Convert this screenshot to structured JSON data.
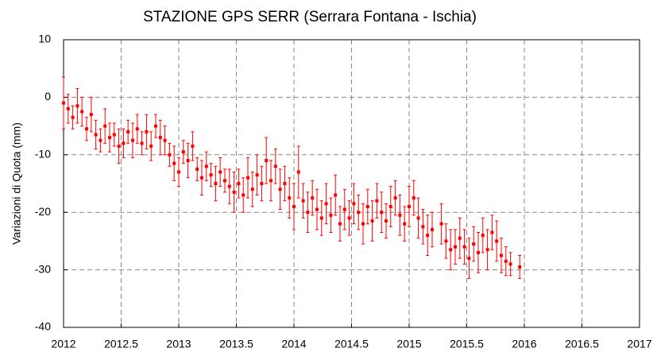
{
  "chart_data": {
    "type": "scatter",
    "title": "STAZIONE GPS SERR (Serrara Fontana - Ischia)",
    "y_label": "Variazioni di Quota (mm)",
    "color": "#ff0000",
    "grid": true,
    "xlim": [
      2012,
      2017
    ],
    "xticks": [
      2012,
      2012.5,
      2013,
      2013.5,
      2014,
      2014.5,
      2015,
      2015.5,
      2016,
      2016.5,
      2017
    ],
    "ylim": [
      -40,
      10
    ],
    "yticks": [
      -40,
      -30,
      -20,
      -10,
      0,
      10
    ],
    "x": [
      2012.0,
      2012.04,
      2012.08,
      2012.12,
      2012.16,
      2012.2,
      2012.24,
      2012.28,
      2012.32,
      2012.36,
      2012.4,
      2012.44,
      2012.48,
      2012.52,
      2012.56,
      2012.6,
      2012.64,
      2012.68,
      2012.72,
      2012.76,
      2012.8,
      2012.84,
      2012.88,
      2012.92,
      2012.96,
      2013.0,
      2013.04,
      2013.08,
      2013.12,
      2013.16,
      2013.2,
      2013.24,
      2013.28,
      2013.32,
      2013.36,
      2013.4,
      2013.44,
      2013.48,
      2013.52,
      2013.56,
      2013.6,
      2013.64,
      2013.68,
      2013.72,
      2013.76,
      2013.8,
      2013.84,
      2013.88,
      2013.92,
      2013.96,
      2014.0,
      2014.04,
      2014.08,
      2014.12,
      2014.16,
      2014.2,
      2014.24,
      2014.28,
      2014.32,
      2014.36,
      2014.4,
      2014.44,
      2014.48,
      2014.52,
      2014.56,
      2014.6,
      2014.64,
      2014.68,
      2014.72,
      2014.76,
      2014.8,
      2014.84,
      2014.88,
      2014.92,
      2014.96,
      2015.0,
      2015.04,
      2015.08,
      2015.12,
      2015.16,
      2015.2,
      2015.28,
      2015.32,
      2015.36,
      2015.4,
      2015.44,
      2015.48,
      2015.52,
      2015.56,
      2015.6,
      2015.64,
      2015.68,
      2015.72,
      2015.76,
      2015.8,
      2015.84,
      2015.88,
      2015.96
    ],
    "values": [
      -1.0,
      -2.0,
      -3.5,
      -1.5,
      -2.5,
      -5.5,
      -3.0,
      -6.5,
      -7.5,
      -5.0,
      -7.0,
      -6.5,
      -8.5,
      -8.0,
      -6.0,
      -7.5,
      -5.5,
      -8.0,
      -6.0,
      -8.5,
      -5.0,
      -7.0,
      -7.5,
      -10.0,
      -11.5,
      -13.0,
      -9.5,
      -11.0,
      -8.5,
      -12.5,
      -14.0,
      -12.0,
      -13.5,
      -15.0,
      -13.0,
      -14.5,
      -15.5,
      -16.5,
      -15.0,
      -17.0,
      -14.0,
      -16.0,
      -13.5,
      -15.0,
      -11.0,
      -14.5,
      -12.0,
      -16.0,
      -15.0,
      -17.5,
      -19.0,
      -13.0,
      -18.0,
      -20.0,
      -17.5,
      -19.5,
      -21.0,
      -18.5,
      -20.5,
      -17.0,
      -22.0,
      -19.5,
      -21.0,
      -18.5,
      -20.0,
      -22.0,
      -19.0,
      -21.5,
      -18.0,
      -20.0,
      -21.5,
      -19.0,
      -17.5,
      -20.5,
      -22.0,
      -19.0,
      -17.5,
      -21.0,
      -22.5,
      -24.0,
      -23.0,
      -22.0,
      -25.0,
      -26.5,
      -26.0,
      -24.5,
      -26.0,
      -28.0,
      -25.5,
      -27.0,
      -24.0,
      -26.5,
      -23.5,
      -25.0,
      -27.5,
      -28.5,
      -29.0,
      -29.5
    ],
    "errors": [
      4.5,
      2.5,
      2.0,
      3.0,
      2.5,
      2.0,
      3.0,
      2.5,
      2.0,
      3.0,
      2.5,
      2.0,
      3.0,
      2.5,
      2.0,
      3.0,
      2.5,
      2.0,
      3.0,
      2.5,
      2.0,
      3.0,
      2.5,
      2.0,
      3.0,
      2.5,
      2.0,
      3.0,
      2.5,
      2.0,
      3.0,
      2.5,
      2.0,
      3.0,
      2.5,
      2.0,
      3.0,
      3.5,
      2.5,
      3.0,
      3.5,
      3.0,
      3.5,
      3.0,
      4.0,
      3.5,
      3.0,
      3.5,
      3.0,
      3.5,
      4.0,
      4.5,
      3.0,
      3.5,
      3.0,
      3.5,
      3.0,
      3.5,
      3.0,
      3.5,
      3.0,
      3.5,
      3.0,
      3.5,
      3.0,
      3.5,
      3.0,
      3.5,
      3.0,
      3.5,
      3.0,
      3.5,
      3.0,
      3.5,
      3.0,
      3.5,
      3.0,
      3.5,
      3.0,
      3.5,
      3.0,
      3.5,
      3.0,
      3.5,
      3.0,
      3.5,
      3.0,
      3.5,
      3.0,
      3.5,
      3.0,
      3.5,
      3.0,
      3.5,
      3.0,
      2.5,
      2.0,
      2.0
    ]
  }
}
